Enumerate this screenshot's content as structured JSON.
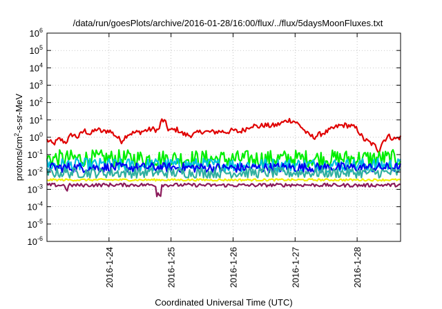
{
  "chart_data": {
    "type": "line",
    "title": "/data/run/goesPlots/archive/2016-01-28/16:00/flux/../flux/5daysMoonFluxes.txt",
    "xlabel": "Coordinated Universal Time (UTC)",
    "ylabel": {
      "base": "protons/cm",
      "sup": "2",
      "rest": "-s-sr-MeV"
    },
    "yscale": "log",
    "ylim_exp": [
      -6,
      6
    ],
    "y_ticks": [
      {
        "base": "10",
        "exp": "-6",
        "e": -6
      },
      {
        "base": "10",
        "exp": "-5",
        "e": -5
      },
      {
        "base": "10",
        "exp": "-4",
        "e": -4
      },
      {
        "base": "10",
        "exp": "-3",
        "e": -3
      },
      {
        "base": "10",
        "exp": "-2",
        "e": -2
      },
      {
        "base": "10",
        "exp": "-1",
        "e": -1
      },
      {
        "base": "10",
        "exp": "0",
        "e": 0
      },
      {
        "base": "10",
        "exp": "1",
        "e": 1
      },
      {
        "base": "10",
        "exp": "2",
        "e": 2
      },
      {
        "base": "10",
        "exp": "3",
        "e": 3
      },
      {
        "base": "10",
        "exp": "4",
        "e": 4
      },
      {
        "base": "10",
        "exp": "5",
        "e": 5
      },
      {
        "base": "10",
        "exp": "6",
        "e": 6
      }
    ],
    "x_ticks": [
      {
        "label": "2016-1-24",
        "day": 1.0
      },
      {
        "label": "2016-1-25",
        "day": 2.0
      },
      {
        "label": "2016-1-26",
        "day": 3.0
      },
      {
        "label": "2016-1-27",
        "day": 4.0
      },
      {
        "label": "2016-1-28",
        "day": 5.0
      }
    ],
    "xlim_days": [
      0.0,
      5.7
    ],
    "grid": true,
    "series": [
      {
        "color": "#e00000",
        "amp": 0.15,
        "values": [
          [
            0.0,
            0.7
          ],
          [
            0.1,
            0.4
          ],
          [
            0.2,
            0.8
          ],
          [
            0.3,
            0.5
          ],
          [
            0.4,
            1.5
          ],
          [
            0.5,
            1.0
          ],
          [
            0.6,
            2.5
          ],
          [
            0.7,
            1.5
          ],
          [
            0.8,
            3
          ],
          [
            0.9,
            2
          ],
          [
            1.0,
            2.5
          ],
          [
            1.1,
            1.3
          ],
          [
            1.2,
            0.6
          ],
          [
            1.3,
            1.5
          ],
          [
            1.4,
            1.8
          ],
          [
            1.5,
            2.0
          ],
          [
            1.6,
            2.5
          ],
          [
            1.7,
            3
          ],
          [
            1.8,
            2.5
          ],
          [
            1.85,
            10
          ],
          [
            1.9,
            8
          ],
          [
            1.95,
            3
          ],
          [
            2.0,
            2.5
          ],
          [
            2.1,
            2.8
          ],
          [
            2.2,
            1.5
          ],
          [
            2.3,
            1.3
          ],
          [
            2.4,
            1.6
          ],
          [
            2.5,
            2.2
          ],
          [
            2.6,
            2.0
          ],
          [
            2.7,
            2.0
          ],
          [
            2.8,
            2.2
          ],
          [
            2.9,
            2.0
          ],
          [
            3.0,
            2.5
          ],
          [
            3.1,
            2.0
          ],
          [
            3.2,
            3
          ],
          [
            3.3,
            5
          ],
          [
            3.4,
            4
          ],
          [
            3.5,
            5
          ],
          [
            3.6,
            4.5
          ],
          [
            3.7,
            5
          ],
          [
            3.8,
            7
          ],
          [
            3.9,
            10
          ],
          [
            4.0,
            8
          ],
          [
            4.1,
            4
          ],
          [
            4.2,
            1.5
          ],
          [
            4.3,
            1.0
          ],
          [
            4.4,
            1.5
          ],
          [
            4.5,
            2
          ],
          [
            4.6,
            3
          ],
          [
            4.7,
            4.5
          ],
          [
            4.8,
            5
          ],
          [
            4.9,
            4.5
          ],
          [
            5.0,
            3
          ],
          [
            5.1,
            0.8
          ],
          [
            5.2,
            0.5
          ],
          [
            5.3,
            0.3
          ],
          [
            5.35,
            0.15
          ],
          [
            5.4,
            0.5
          ],
          [
            5.5,
            1.2
          ],
          [
            5.6,
            0.8
          ],
          [
            5.7,
            1.0
          ]
        ]
      },
      {
        "color": "#00ee00",
        "amp": 0.5,
        "values": [
          [
            0.0,
            0.06
          ],
          [
            1.0,
            0.06
          ],
          [
            2.0,
            0.06
          ],
          [
            3.0,
            0.055
          ],
          [
            4.0,
            0.06
          ],
          [
            5.0,
            0.06
          ],
          [
            5.7,
            0.06
          ]
        ]
      },
      {
        "color": "#00c0e0",
        "amp": 0.4,
        "values": [
          [
            0.0,
            0.025
          ],
          [
            1.0,
            0.025
          ],
          [
            2.0,
            0.025
          ],
          [
            3.0,
            0.025
          ],
          [
            4.0,
            0.025
          ],
          [
            5.0,
            0.025
          ],
          [
            5.7,
            0.025
          ]
        ]
      },
      {
        "color": "#0000f0",
        "amp": 0.28,
        "values": [
          [
            0.0,
            0.018
          ],
          [
            1.0,
            0.018
          ],
          [
            2.0,
            0.018
          ],
          [
            3.0,
            0.017
          ],
          [
            4.0,
            0.018
          ],
          [
            5.0,
            0.018
          ],
          [
            5.7,
            0.018
          ]
        ]
      },
      {
        "color": "#30b0a0",
        "amp": 0.3,
        "values": [
          [
            0.0,
            0.009
          ],
          [
            1.0,
            0.009
          ],
          [
            2.0,
            0.009
          ],
          [
            3.0,
            0.009
          ],
          [
            4.0,
            0.009
          ],
          [
            5.0,
            0.009
          ],
          [
            5.7,
            0.009
          ]
        ]
      },
      {
        "color": "#f0f000",
        "amp": 0.06,
        "values": [
          [
            0.0,
            0.0035
          ],
          [
            1.0,
            0.0035
          ],
          [
            2.0,
            0.0035
          ],
          [
            3.0,
            0.0035
          ],
          [
            4.0,
            0.0035
          ],
          [
            5.0,
            0.0035
          ],
          [
            5.7,
            0.0035
          ]
        ]
      },
      {
        "color": "#8b1a5a",
        "amp": 0.1,
        "values": [
          [
            0.0,
            0.0018
          ],
          [
            0.3,
            0.0017
          ],
          [
            0.32,
            0.0005
          ],
          [
            0.34,
            0.0017
          ],
          [
            1.0,
            0.0018
          ],
          [
            1.75,
            0.0018
          ],
          [
            1.78,
            0.0002
          ],
          [
            1.8,
            0.0018
          ],
          [
            1.82,
            0.0002
          ],
          [
            1.85,
            0.0018
          ],
          [
            3.0,
            0.0017
          ],
          [
            4.0,
            0.0018
          ],
          [
            5.0,
            0.0017
          ],
          [
            5.7,
            0.0018
          ]
        ]
      }
    ]
  }
}
